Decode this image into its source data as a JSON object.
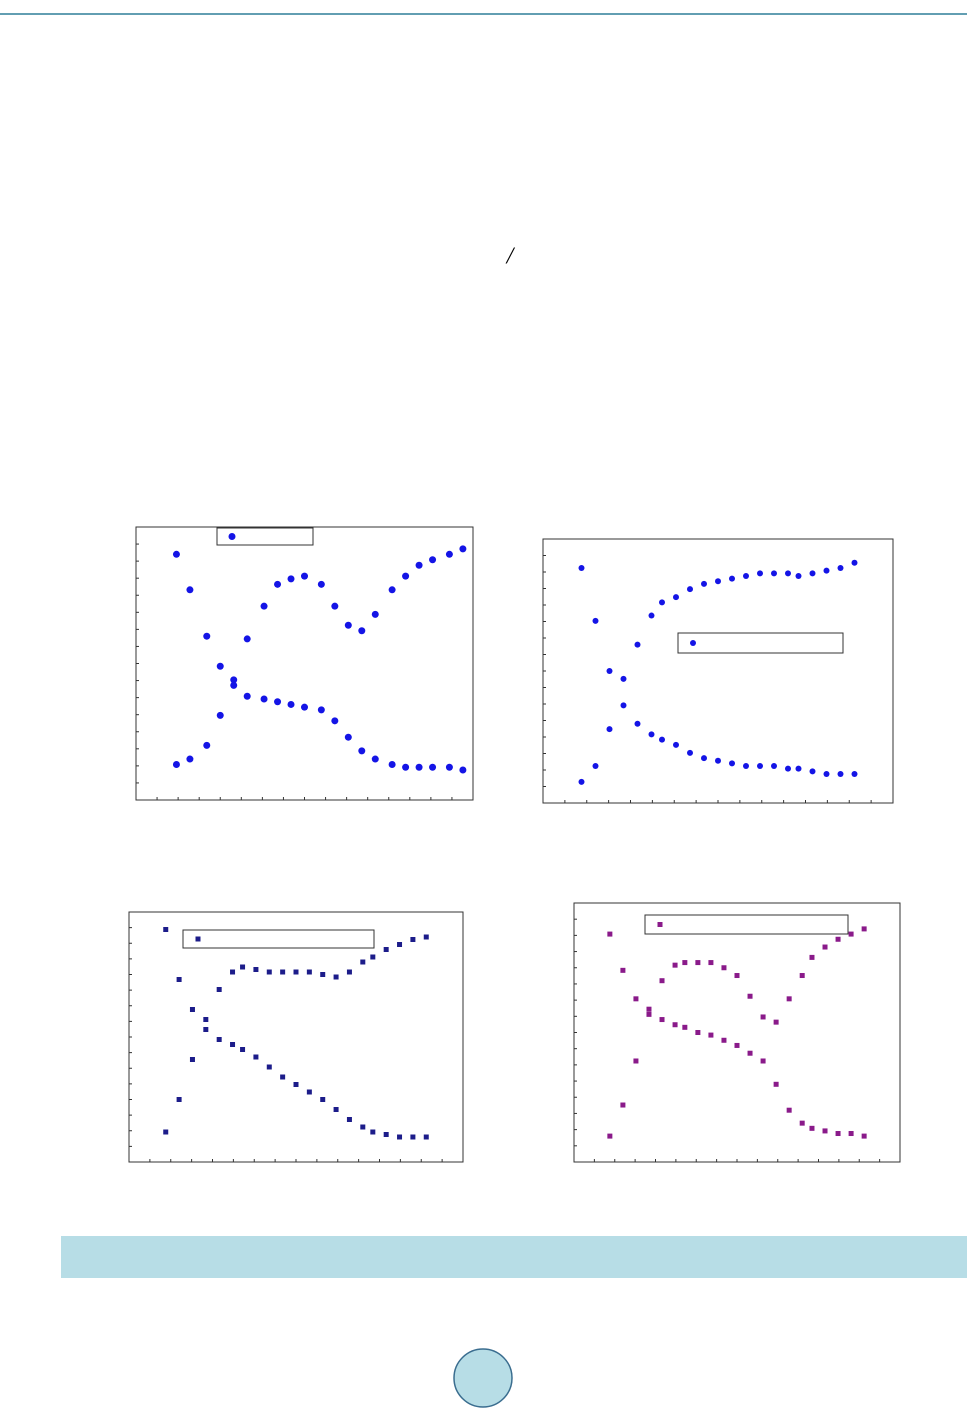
{
  "text": {
    "slash": "/"
  },
  "chart_data": [
    {
      "type": "scatter",
      "marker": "circle",
      "xlim": [
        0,
        1
      ],
      "ylim": [
        0,
        1
      ],
      "x": [
        0.12,
        0.16,
        0.21,
        0.25,
        0.29,
        0.33,
        0.38,
        0.42,
        0.46,
        0.5,
        0.55,
        0.59,
        0.63,
        0.67,
        0.71,
        0.76,
        0.8,
        0.84,
        0.88,
        0.93,
        0.97
      ],
      "series": [
        {
          "color": "#1414e6",
          "values": [
            0.13,
            0.15,
            0.2,
            0.31,
            0.44,
            0.59,
            0.71,
            0.79,
            0.81,
            0.82,
            0.79,
            0.71,
            0.64,
            0.62,
            0.68,
            0.77,
            0.82,
            0.86,
            0.88,
            0.9,
            0.92
          ]
        },
        {
          "color": "#1414e6",
          "values": [
            0.9,
            0.77,
            0.6,
            0.49,
            0.42,
            0.38,
            0.37,
            0.36,
            0.35,
            0.34,
            0.33,
            0.29,
            0.23,
            0.18,
            0.15,
            0.13,
            0.12,
            0.12,
            0.12,
            0.12,
            0.11
          ]
        }
      ]
    },
    {
      "type": "scatter",
      "marker": "circle",
      "xlim": [
        0,
        1
      ],
      "ylim": [
        0,
        1
      ],
      "x": [
        0.11,
        0.15,
        0.19,
        0.23,
        0.27,
        0.31,
        0.34,
        0.38,
        0.42,
        0.46,
        0.5,
        0.54,
        0.58,
        0.62,
        0.66,
        0.7,
        0.73,
        0.77,
        0.81,
        0.85,
        0.89
      ],
      "series": [
        {
          "color": "#1414e6",
          "values": [
            0.08,
            0.14,
            0.28,
            0.47,
            0.6,
            0.71,
            0.76,
            0.78,
            0.81,
            0.83,
            0.84,
            0.85,
            0.86,
            0.87,
            0.87,
            0.87,
            0.86,
            0.87,
            0.88,
            0.89,
            0.91
          ]
        },
        {
          "color": "#1414e6",
          "values": [
            0.89,
            0.69,
            0.5,
            0.37,
            0.3,
            0.26,
            0.24,
            0.22,
            0.19,
            0.17,
            0.16,
            0.15,
            0.14,
            0.14,
            0.14,
            0.13,
            0.13,
            0.12,
            0.11,
            0.11,
            0.11
          ]
        }
      ]
    },
    {
      "type": "scatter",
      "marker": "square",
      "xlim": [
        0,
        1
      ],
      "ylim": [
        0,
        1
      ],
      "x": [
        0.11,
        0.15,
        0.19,
        0.23,
        0.27,
        0.31,
        0.34,
        0.38,
        0.42,
        0.46,
        0.5,
        0.54,
        0.58,
        0.62,
        0.66,
        0.7,
        0.73,
        0.77,
        0.81,
        0.85,
        0.89
      ],
      "series": [
        {
          "color": "#1c1c8a",
          "values": [
            0.12,
            0.25,
            0.41,
            0.57,
            0.69,
            0.76,
            0.78,
            0.77,
            0.76,
            0.76,
            0.76,
            0.76,
            0.75,
            0.74,
            0.76,
            0.8,
            0.82,
            0.85,
            0.87,
            0.89,
            0.9
          ]
        },
        {
          "color": "#1c1c8a",
          "values": [
            0.93,
            0.73,
            0.61,
            0.53,
            0.49,
            0.47,
            0.45,
            0.42,
            0.38,
            0.34,
            0.31,
            0.28,
            0.25,
            0.21,
            0.17,
            0.14,
            0.12,
            0.11,
            0.1,
            0.1,
            0.1
          ]
        }
      ]
    },
    {
      "type": "scatter",
      "marker": "square",
      "xlim": [
        0,
        1
      ],
      "ylim": [
        0,
        1
      ],
      "x": [
        0.11,
        0.15,
        0.19,
        0.23,
        0.27,
        0.31,
        0.34,
        0.38,
        0.42,
        0.46,
        0.5,
        0.54,
        0.58,
        0.62,
        0.66,
        0.7,
        0.73,
        0.77,
        0.81,
        0.85,
        0.89
      ],
      "series": [
        {
          "color": "#8a1a8a",
          "values": [
            0.1,
            0.22,
            0.39,
            0.59,
            0.7,
            0.76,
            0.77,
            0.77,
            0.77,
            0.75,
            0.72,
            0.64,
            0.56,
            0.54,
            0.63,
            0.72,
            0.79,
            0.83,
            0.86,
            0.88,
            0.9
          ]
        },
        {
          "color": "#8a1a8a",
          "values": [
            0.88,
            0.74,
            0.63,
            0.57,
            0.55,
            0.53,
            0.52,
            0.5,
            0.49,
            0.47,
            0.45,
            0.42,
            0.39,
            0.3,
            0.2,
            0.15,
            0.13,
            0.12,
            0.11,
            0.11,
            0.1
          ]
        }
      ]
    }
  ]
}
